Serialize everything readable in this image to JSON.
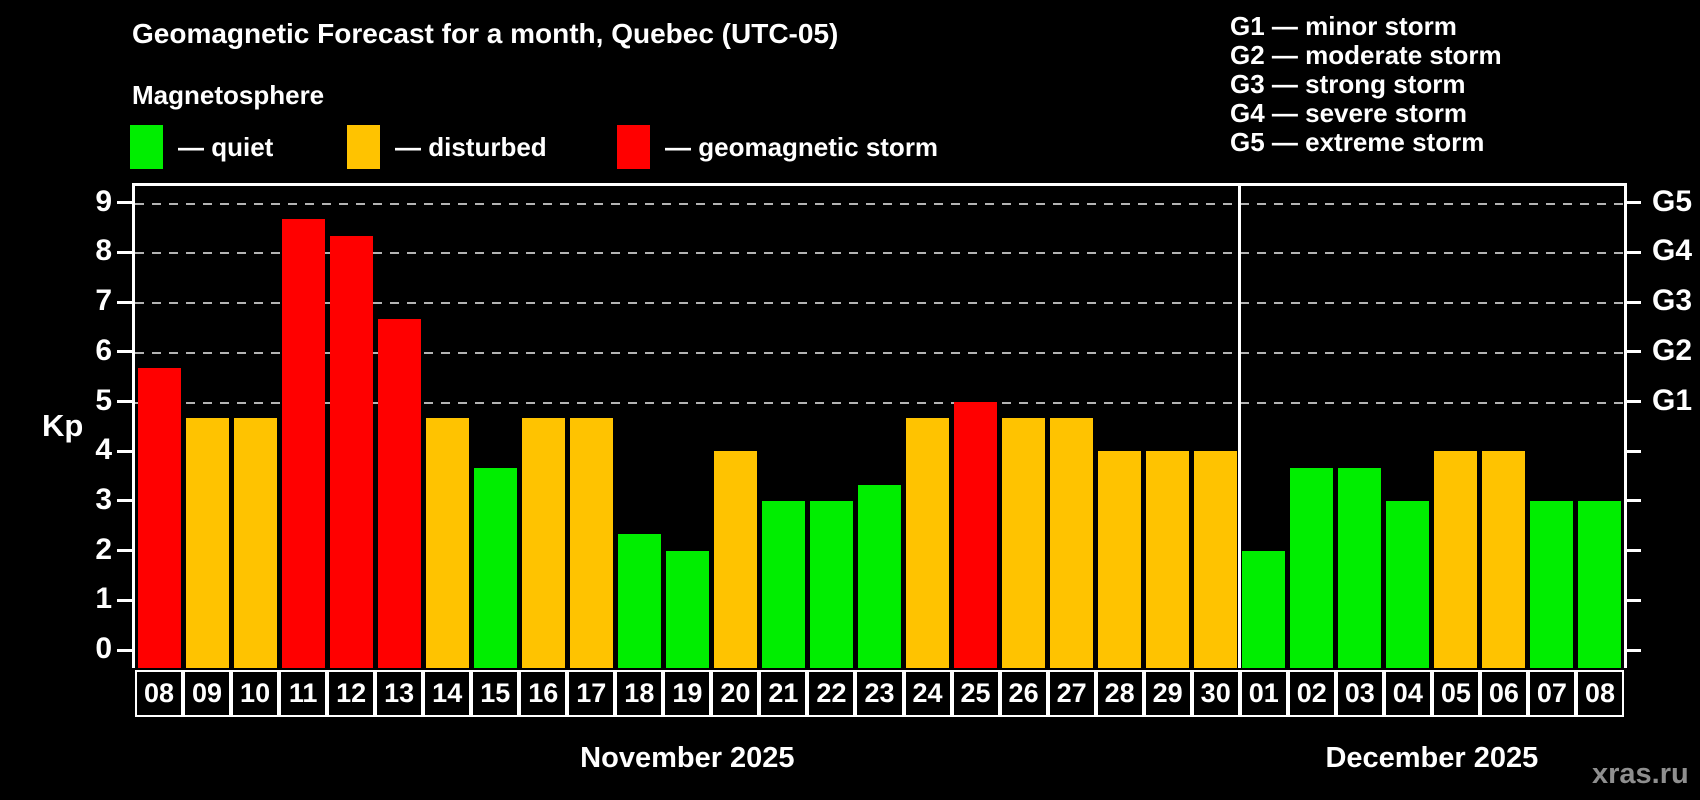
{
  "header": {
    "title": "Geomagnetic Forecast for a month, Quebec (UTC-05)",
    "subtitle": "Magnetosphere"
  },
  "legend": {
    "items": [
      {
        "key": "quiet",
        "label": "— quiet"
      },
      {
        "key": "disturbed",
        "label": "— disturbed"
      },
      {
        "key": "storm",
        "label": "— geomagnetic storm"
      }
    ]
  },
  "g_scale_legend": [
    "G1 — minor storm",
    "G2 — moderate storm",
    "G3 — strong storm",
    "G4 — severe storm",
    "G5 — extreme storm"
  ],
  "axis": {
    "y_label": "Kp",
    "y_ticks": [
      "0",
      "1",
      "2",
      "3",
      "4",
      "5",
      "6",
      "7",
      "8",
      "9"
    ],
    "g_labels": [
      "G1",
      "G2",
      "G3",
      "G4",
      "G5"
    ],
    "g_kp_levels": {
      "G1": 5,
      "G2": 6,
      "G3": 7,
      "G4": 8,
      "G5": 9
    }
  },
  "colors": {
    "quiet": "#00ee00",
    "disturbed": "#ffc300",
    "storm": "#ff0000",
    "grid": "#b3b3b3",
    "background": "#000000",
    "text": "#ffffff",
    "watermark": "#8f8f8f"
  },
  "watermark": "xras.ru",
  "chart_data": {
    "type": "bar",
    "title": "Geomagnetic Forecast for a month, Quebec (UTC-05)",
    "xlabel": "",
    "ylabel": "Kp",
    "ylim": [
      0,
      9.4
    ],
    "grid": "horizontal dashed lines at Kp 5,6,7,8,9 (G1–G5)",
    "legend_position": "top-left",
    "months": [
      {
        "label": "November 2025",
        "days": 23
      },
      {
        "label": "December 2025",
        "days": 8
      }
    ],
    "bars": [
      {
        "month": "November 2025",
        "day": "08",
        "value": 5.67,
        "status": "storm"
      },
      {
        "month": "November 2025",
        "day": "09",
        "value": 4.67,
        "status": "disturbed"
      },
      {
        "month": "November 2025",
        "day": "10",
        "value": 4.67,
        "status": "disturbed"
      },
      {
        "month": "November 2025",
        "day": "11",
        "value": 8.67,
        "status": "storm"
      },
      {
        "month": "November 2025",
        "day": "12",
        "value": 8.33,
        "status": "storm"
      },
      {
        "month": "November 2025",
        "day": "13",
        "value": 6.67,
        "status": "storm"
      },
      {
        "month": "November 2025",
        "day": "14",
        "value": 4.67,
        "status": "disturbed"
      },
      {
        "month": "November 2025",
        "day": "15",
        "value": 3.67,
        "status": "quiet"
      },
      {
        "month": "November 2025",
        "day": "16",
        "value": 4.67,
        "status": "disturbed"
      },
      {
        "month": "November 2025",
        "day": "17",
        "value": 4.67,
        "status": "disturbed"
      },
      {
        "month": "November 2025",
        "day": "18",
        "value": 2.33,
        "status": "quiet"
      },
      {
        "month": "November 2025",
        "day": "19",
        "value": 2.0,
        "status": "quiet"
      },
      {
        "month": "November 2025",
        "day": "20",
        "value": 4.0,
        "status": "disturbed"
      },
      {
        "month": "November 2025",
        "day": "21",
        "value": 3.0,
        "status": "quiet"
      },
      {
        "month": "November 2025",
        "day": "22",
        "value": 3.0,
        "status": "quiet"
      },
      {
        "month": "November 2025",
        "day": "23",
        "value": 3.33,
        "status": "quiet"
      },
      {
        "month": "November 2025",
        "day": "24",
        "value": 4.67,
        "status": "disturbed"
      },
      {
        "month": "November 2025",
        "day": "25",
        "value": 5.0,
        "status": "storm"
      },
      {
        "month": "November 2025",
        "day": "26",
        "value": 4.67,
        "status": "disturbed"
      },
      {
        "month": "November 2025",
        "day": "27",
        "value": 4.67,
        "status": "disturbed"
      },
      {
        "month": "November 2025",
        "day": "28",
        "value": 4.0,
        "status": "disturbed"
      },
      {
        "month": "November 2025",
        "day": "29",
        "value": 4.0,
        "status": "disturbed"
      },
      {
        "month": "November 2025",
        "day": "30",
        "value": 4.0,
        "status": "disturbed"
      },
      {
        "month": "December 2025",
        "day": "01",
        "value": 2.0,
        "status": "quiet"
      },
      {
        "month": "December 2025",
        "day": "02",
        "value": 3.67,
        "status": "quiet"
      },
      {
        "month": "December 2025",
        "day": "03",
        "value": 3.67,
        "status": "quiet"
      },
      {
        "month": "December 2025",
        "day": "04",
        "value": 3.0,
        "status": "quiet"
      },
      {
        "month": "December 2025",
        "day": "05",
        "value": 4.0,
        "status": "disturbed"
      },
      {
        "month": "December 2025",
        "day": "06",
        "value": 4.0,
        "status": "disturbed"
      },
      {
        "month": "December 2025",
        "day": "07",
        "value": 3.0,
        "status": "quiet"
      },
      {
        "month": "December 2025",
        "day": "08",
        "value": 3.0,
        "status": "quiet"
      }
    ]
  }
}
